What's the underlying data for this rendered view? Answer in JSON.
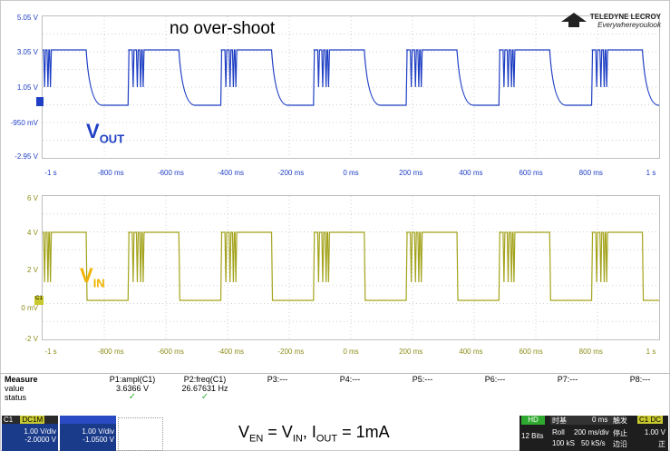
{
  "top_plot": {
    "annotation": "no over-shoot",
    "label_v": "V",
    "label_sub": "OUT",
    "y_ticks": [
      "5.05 V",
      "3.05 V",
      "1.05 V",
      "-950 mV",
      "-2.95 V"
    ],
    "x_ticks": [
      "-1 s",
      "-800 ms",
      "-600 ms",
      "-400 ms",
      "-200 ms",
      "0 ms",
      "200 ms",
      "400 ms",
      "600 ms",
      "800 ms",
      "1 s"
    ]
  },
  "bottom_plot": {
    "label_v": "V",
    "label_sub": "IN",
    "y_ticks": [
      "6 V",
      "4 V",
      "2 V",
      "0 mV",
      "-2 V"
    ],
    "x_ticks": [
      "-1 s",
      "-800 ms",
      "-600 ms",
      "-400 ms",
      "-200 ms",
      "0 ms",
      "200 ms",
      "400 ms",
      "600 ms",
      "800 ms",
      "1 s"
    ],
    "ch_marker": "C1"
  },
  "logo": {
    "line1": "TELEDYNE LECROY",
    "line2": "Everywhereyoulook"
  },
  "measure": {
    "title": "Measure",
    "row_value": "value",
    "row_status": "status",
    "columns": [
      {
        "name": "P1:ampl(C1)",
        "value": "3.6366 V",
        "status": "✓"
      },
      {
        "name": "P2:freq(C1)",
        "value": "26.67631 Hz",
        "status": "✓"
      },
      {
        "name": "P3:---",
        "value": "",
        "status": ""
      },
      {
        "name": "P4:---",
        "value": "",
        "status": ""
      },
      {
        "name": "P5:---",
        "value": "",
        "status": ""
      },
      {
        "name": "P6:---",
        "value": "",
        "status": ""
      },
      {
        "name": "P7:---",
        "value": "",
        "status": ""
      },
      {
        "name": "P8:---",
        "value": "",
        "status": ""
      }
    ]
  },
  "channels": {
    "c1_name": "C1",
    "c1_coupling": "DC1M",
    "c1_vdiv": "1.00 V/div",
    "c1_offset": "-2.0000 V",
    "c2_vdiv": "1.00 V/div",
    "c2_offset": "-1.0500 V"
  },
  "caption": "V",
  "caption_parts": {
    "en": "EN",
    "eq": " = V",
    "in": "IN",
    "rest": ", I",
    "out": "OUT",
    "tail": " = 1mA"
  },
  "timebase": {
    "hd": "HD",
    "bits": "12 Bits",
    "timebase_label": "时基",
    "delay": "0 ms",
    "trigger_label": "触发",
    "roll": "Roll",
    "tdiv": "200 ms/div",
    "stop": "停止",
    "samples": "100 kS",
    "rate": "50 kS/s",
    "edge": "边沿",
    "trig_ch": "C1 DC",
    "trig_level": "1.00 V",
    "trig_slope": "正"
  },
  "colors": {
    "vout": "#1f3fc4",
    "vin": "#a3a31c",
    "annotation_caption": "#000000"
  }
}
